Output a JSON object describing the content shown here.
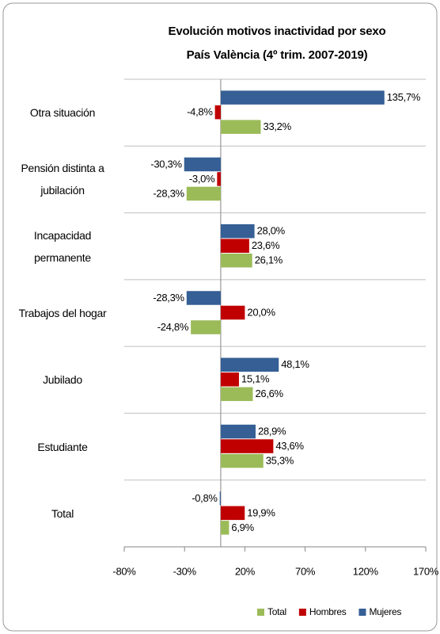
{
  "chart_data": {
    "type": "hbar",
    "title": "Evolución motivos inactividad por sexo",
    "subtitle": "País València (4º trim. 2007-2019)",
    "categories": [
      "Otra situación",
      "Pensión distinta a jubilación",
      "Incapacidad permanente",
      "Trabajos del hogar",
      "Jubilado",
      "Estudiante",
      "Total"
    ],
    "series": [
      {
        "name": "Mujeres",
        "color": "#355f95",
        "values": [
          135.7,
          -30.3,
          28.0,
          -28.3,
          48.1,
          28.9,
          -0.8
        ],
        "value_labels": [
          "135,7%",
          "-30,3%",
          "28,0%",
          "-28,3%",
          "48,1%",
          "28,9%",
          "-0,8%"
        ]
      },
      {
        "name": "Hombres",
        "color": "#c00000",
        "values": [
          -4.8,
          -3.0,
          23.6,
          20.0,
          15.1,
          43.6,
          19.9
        ],
        "value_labels": [
          "-4,8%",
          "-3,0%",
          "23,6%",
          "20,0%",
          "15,1%",
          "43,6%",
          "19,9%"
        ]
      },
      {
        "name": "Total",
        "color": "#9bbb59",
        "values": [
          33.2,
          -28.3,
          26.1,
          -24.8,
          26.6,
          35.3,
          6.9
        ],
        "value_labels": [
          "33,2%",
          "-28,3%",
          "26,1%",
          "-24,8%",
          "26,6%",
          "35,3%",
          "6,9%"
        ]
      }
    ],
    "xlim": [
      -80,
      170
    ],
    "xticks": [
      {
        "value": -80,
        "label": "-80%"
      },
      {
        "value": -30,
        "label": "-30%"
      },
      {
        "value": 20,
        "label": "20%"
      },
      {
        "value": 70,
        "label": "70%"
      },
      {
        "value": 120,
        "label": "120%"
      },
      {
        "value": 170,
        "label": "170%"
      }
    ],
    "legend": "bottom"
  }
}
